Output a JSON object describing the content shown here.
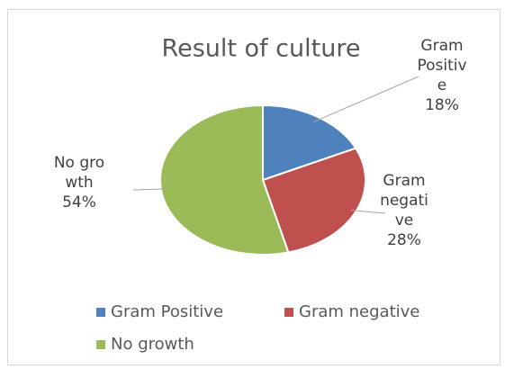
{
  "chart_data": {
    "type": "pie",
    "title": "Result of culture",
    "categories": [
      "Gram Positive",
      "Gram negative",
      "No growth"
    ],
    "values": [
      18,
      28,
      54
    ],
    "value_labels": [
      "18%",
      "28%",
      "54%"
    ],
    "colors": [
      "#4f81bd",
      "#c0504d",
      "#9bbb59"
    ],
    "legend": "bottom"
  }
}
